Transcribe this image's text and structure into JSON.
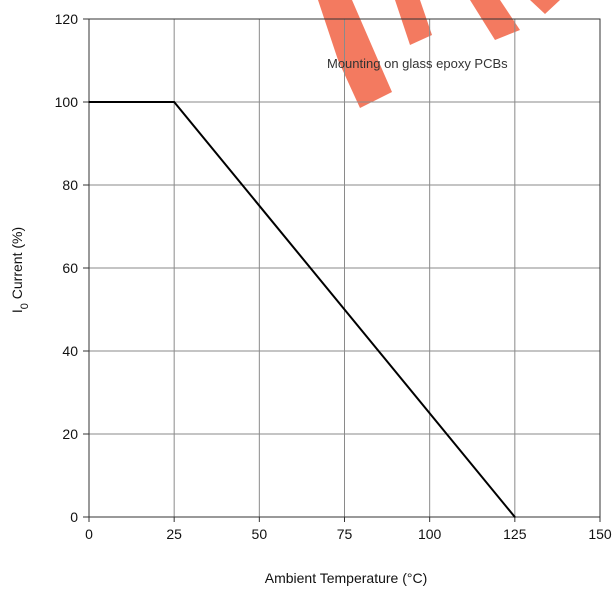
{
  "chart_data": {
    "type": "line",
    "xlabel": "Ambient Temperature (°C)",
    "ylabel_prefix": "I",
    "ylabel_subscript": "0",
    "ylabel_rest": " Current (%)",
    "xlim": [
      0,
      150
    ],
    "ylim": [
      0,
      120
    ],
    "xticks": [
      0,
      25,
      50,
      75,
      100,
      125,
      150
    ],
    "yticks": [
      0,
      20,
      40,
      60,
      80,
      100,
      120
    ],
    "grid": true,
    "annotation": "Mounting on glass epoxy PCBs",
    "series": [
      {
        "x": [
          0,
          25,
          125
        ],
        "y": [
          100,
          100,
          0
        ],
        "color": "#000000"
      }
    ]
  },
  "watermark": {
    "color": "#f26b4f"
  }
}
